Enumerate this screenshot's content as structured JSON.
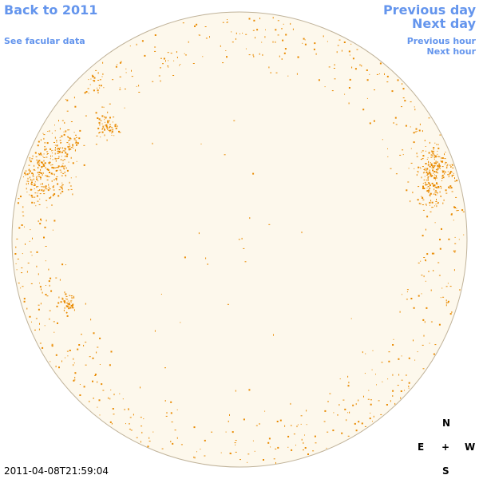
{
  "nav": {
    "back_label": "Back to 2011",
    "facular_label": "See facular data",
    "prev_day_label": "Previous day",
    "next_day_label": "Next day",
    "prev_hour_label": "Previous hour",
    "next_hour_label": "Next hour"
  },
  "timestamp": "2011-04-08T21:59:04",
  "compass": {
    "north": "N",
    "east": "E",
    "center": "+",
    "west": "W",
    "south": "S"
  },
  "colors": {
    "link": "#6495ed",
    "disk_fill": "#fdf8ec",
    "disk_stroke": "#c0b39a",
    "facula": "#e98a00"
  },
  "icons": {
    "compass": "crosshair-plus"
  }
}
